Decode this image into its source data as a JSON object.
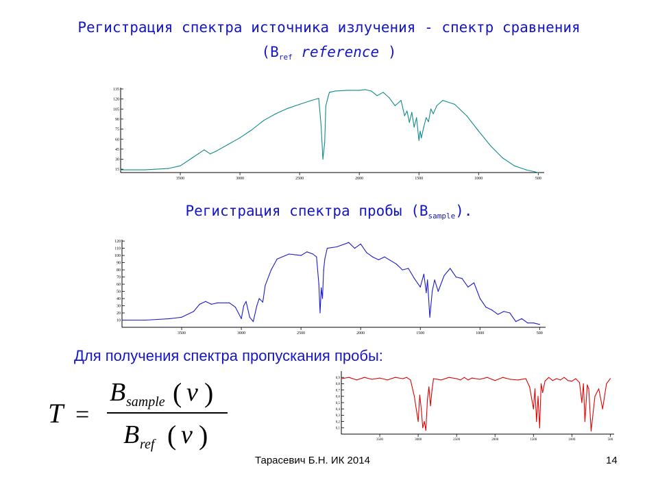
{
  "slide": {
    "title1": "Регистрация спектра источника излучения - спектр сравнения",
    "title2_open": "(B",
    "title2_sub": "ref",
    "title2_italic": "reference",
    "title2_close": ")",
    "title3_main": "Регистрация спектра пробы (B",
    "title3_sub": "sample",
    "title3_close": ").",
    "title4": "Для получения спектра пропускания пробы:",
    "formula": {
      "lhs": "T",
      "eq": "=",
      "num_B": "B",
      "num_sub": "sample",
      "den_B": "B",
      "den_sub": "ref",
      "arg": "v"
    },
    "footer_author": "Тарасевич Б.Н. ИК 2014",
    "page_number": "14",
    "colors": {
      "title_text": "#1515c8",
      "reference_line": "#0f8a8a",
      "sample_line": "#1a1acc",
      "transmission_line": "#e00000"
    }
  },
  "chart_data": [
    {
      "type": "line",
      "name": "reference",
      "color": "#0f8a8a",
      "xlim": [
        4000,
        450
      ],
      "ylim": [
        10,
        137
      ],
      "yticks": [
        "135",
        "120",
        "105",
        "90",
        "75",
        "60",
        "45",
        "30",
        "15"
      ],
      "yticks_values": [
        135,
        120,
        105,
        90,
        75,
        60,
        45,
        30,
        15
      ],
      "xticks": [
        "3500",
        "3000",
        "2500",
        "2000",
        "1500",
        "1000",
        "500"
      ],
      "xticks_values": [
        3500,
        3000,
        2500,
        2000,
        1500,
        1000,
        500
      ],
      "x": [
        4000,
        3800,
        3600,
        3500,
        3400,
        3350,
        3300,
        3250,
        3200,
        3100,
        3000,
        2900,
        2800,
        2700,
        2600,
        2500,
        2400,
        2340,
        2320,
        2305,
        2290,
        2280,
        2260,
        2250,
        2200,
        2100,
        2000,
        1950,
        1900,
        1850,
        1800,
        1750,
        1700,
        1650,
        1620,
        1600,
        1580,
        1560,
        1540,
        1520,
        1500,
        1490,
        1480,
        1460,
        1440,
        1420,
        1400,
        1380,
        1350,
        1300,
        1200,
        1100,
        1000,
        900,
        800,
        700,
        600,
        500
      ],
      "y": [
        14,
        14,
        16,
        20,
        32,
        38,
        44,
        38,
        42,
        52,
        62,
        74,
        88,
        98,
        106,
        112,
        118,
        121,
        80,
        30,
        55,
        110,
        124,
        130,
        132,
        133,
        133,
        134,
        132,
        125,
        130,
        122,
        110,
        118,
        95,
        102,
        85,
        100,
        78,
        92,
        58,
        72,
        62,
        78,
        92,
        86,
        105,
        98,
        110,
        118,
        112,
        95,
        72,
        50,
        32,
        20,
        14,
        10
      ]
    },
    {
      "type": "line",
      "name": "sample",
      "color": "#1a1acc",
      "xlim": [
        4000,
        450
      ],
      "ylim": [
        0,
        122
      ],
      "yticks": [
        "120",
        "110",
        "100",
        "90",
        "80",
        "70",
        "60",
        "50",
        "40",
        "30",
        "20",
        "10"
      ],
      "yticks_values": [
        120,
        110,
        100,
        90,
        80,
        70,
        60,
        50,
        40,
        30,
        20,
        10
      ],
      "xticks": [
        "3500",
        "3000",
        "2500",
        "2000",
        "1500",
        "1000",
        "500"
      ],
      "xticks_values": [
        3500,
        3000,
        2500,
        2000,
        1500,
        1000,
        500
      ],
      "x": [
        4000,
        3800,
        3600,
        3500,
        3400,
        3350,
        3300,
        3250,
        3200,
        3100,
        3050,
        3000,
        2980,
        2960,
        2930,
        2900,
        2870,
        2850,
        2820,
        2800,
        2750,
        2700,
        2600,
        2500,
        2450,
        2400,
        2370,
        2350,
        2340,
        2330,
        2320,
        2310,
        2300,
        2280,
        2200,
        2100,
        2050,
        2000,
        1950,
        1900,
        1850,
        1800,
        1700,
        1650,
        1600,
        1550,
        1500,
        1470,
        1450,
        1440,
        1420,
        1400,
        1380,
        1350,
        1300,
        1250,
        1200,
        1150,
        1100,
        1050,
        1000,
        950,
        900,
        850,
        800,
        750,
        700,
        650,
        600,
        550,
        500
      ],
      "y": [
        10,
        10,
        12,
        14,
        22,
        32,
        36,
        32,
        34,
        34,
        28,
        12,
        30,
        36,
        14,
        8,
        30,
        40,
        35,
        58,
        80,
        95,
        102,
        100,
        105,
        102,
        98,
        60,
        20,
        55,
        40,
        80,
        95,
        110,
        112,
        118,
        110,
        116,
        104,
        98,
        94,
        98,
        88,
        80,
        82,
        68,
        56,
        74,
        48,
        66,
        14,
        50,
        66,
        50,
        72,
        82,
        70,
        68,
        56,
        62,
        40,
        28,
        24,
        18,
        22,
        20,
        8,
        12,
        6,
        6,
        4
      ]
    },
    {
      "type": "line",
      "name": "transmission",
      "color": "#e00000",
      "xlim": [
        4000,
        450
      ],
      "ylim": [
        0,
        1
      ],
      "yticks": [
        "0,9",
        "0,8",
        "0,7",
        "0,6",
        "0,5",
        "0,4",
        "0,3",
        "0,2",
        "0,1"
      ],
      "yticks_values": [
        0.9,
        0.8,
        0.7,
        0.6,
        0.5,
        0.4,
        0.3,
        0.2,
        0.1
      ],
      "xticks": [
        "3500",
        "3000",
        "2500",
        "2000",
        "1500",
        "1000",
        "500"
      ],
      "xticks_values": [
        3500,
        3000,
        2500,
        2000,
        1500,
        1000,
        500
      ],
      "x": [
        4000,
        3900,
        3800,
        3700,
        3600,
        3500,
        3400,
        3300,
        3200,
        3150,
        3100,
        3050,
        3000,
        2980,
        2960,
        2940,
        2920,
        2900,
        2880,
        2860,
        2840,
        2820,
        2800,
        2700,
        2600,
        2500,
        2450,
        2400,
        2350,
        2300,
        2200,
        2100,
        2000,
        1900,
        1800,
        1700,
        1600,
        1550,
        1500,
        1480,
        1460,
        1440,
        1420,
        1400,
        1380,
        1350,
        1300,
        1250,
        1200,
        1150,
        1100,
        1050,
        1000,
        950,
        900,
        870,
        850,
        830,
        800,
        780,
        750,
        700,
        650,
        600,
        550,
        500
      ],
      "y": [
        0.88,
        0.9,
        0.86,
        0.9,
        0.87,
        0.89,
        0.86,
        0.9,
        0.88,
        0.9,
        0.86,
        0.6,
        0.2,
        0.62,
        0.4,
        0.1,
        0.2,
        0.06,
        0.55,
        0.75,
        0.45,
        0.7,
        0.88,
        0.86,
        0.9,
        0.88,
        0.86,
        0.9,
        0.86,
        0.89,
        0.87,
        0.9,
        0.85,
        0.9,
        0.87,
        0.86,
        0.88,
        0.75,
        0.4,
        0.72,
        0.2,
        0.6,
        0.1,
        0.8,
        0.66,
        0.84,
        0.9,
        0.85,
        0.88,
        0.86,
        0.9,
        0.85,
        0.84,
        0.88,
        0.82,
        0.5,
        0.8,
        0.2,
        0.78,
        0.72,
        0.05,
        0.6,
        0.72,
        0.4,
        0.8,
        0.88
      ]
    }
  ]
}
